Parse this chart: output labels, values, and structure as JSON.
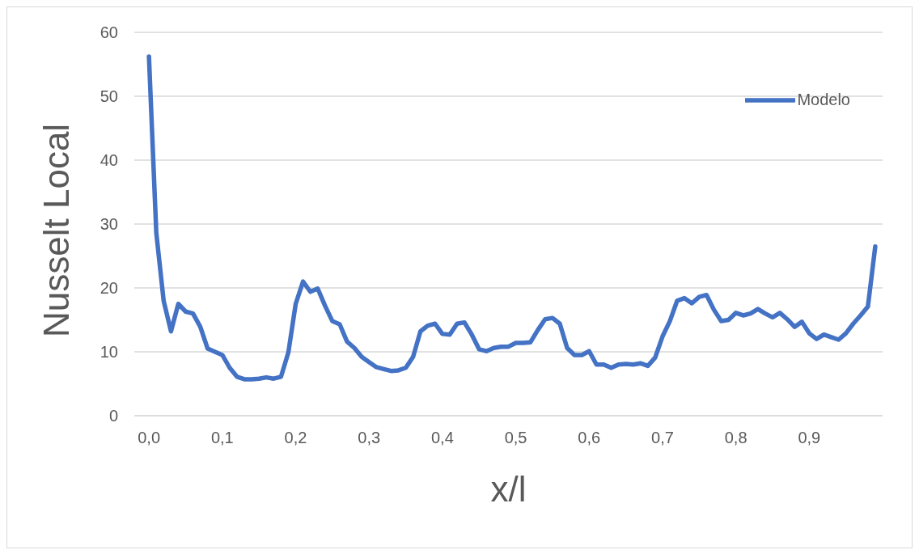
{
  "chart_data": {
    "type": "line",
    "xlabel": "x/l",
    "ylabel": "Nusselt Local",
    "x": [
      0,
      0.01,
      0.02,
      0.03,
      0.04,
      0.05,
      0.06,
      0.07,
      0.08,
      0.09,
      0.1,
      0.11,
      0.12,
      0.13,
      0.14,
      0.15,
      0.16,
      0.17,
      0.18,
      0.19,
      0.2,
      0.21,
      0.22,
      0.23,
      0.24,
      0.25,
      0.26,
      0.27,
      0.28,
      0.29,
      0.3,
      0.31,
      0.32,
      0.33,
      0.34,
      0.35,
      0.36,
      0.37,
      0.38,
      0.39,
      0.4,
      0.41,
      0.42,
      0.43,
      0.44,
      0.45,
      0.46,
      0.47,
      0.48,
      0.49,
      0.5,
      0.51,
      0.52,
      0.53,
      0.54,
      0.55,
      0.56,
      0.57,
      0.58,
      0.59,
      0.6,
      0.61,
      0.62,
      0.63,
      0.64,
      0.65,
      0.66,
      0.67,
      0.68,
      0.69,
      0.7,
      0.71,
      0.72,
      0.73,
      0.74,
      0.75,
      0.76,
      0.77,
      0.78,
      0.79,
      0.8,
      0.81,
      0.82,
      0.83,
      0.84,
      0.85,
      0.86,
      0.87,
      0.88,
      0.89,
      0.9,
      0.91,
      0.92,
      0.93,
      0.94,
      0.95,
      0.96,
      0.97,
      0.98,
      0.99
    ],
    "series": [
      {
        "name": "Modelo",
        "color": "#4472c4",
        "values": [
          56.2,
          28.6,
          18,
          13.2,
          17.5,
          16.3,
          16,
          13.9,
          10.5,
          10,
          9.5,
          7.5,
          6.1,
          5.7,
          5.7,
          5.8,
          6,
          5.8,
          6.1,
          9.9,
          17.5,
          21,
          19.4,
          19.9,
          17.2,
          14.8,
          14.3,
          11.6,
          10.6,
          9.2,
          8.4,
          7.6,
          7.3,
          7,
          7.1,
          7.5,
          9.2,
          13.2,
          14.1,
          14.4,
          12.8,
          12.7,
          14.4,
          14.6,
          12.7,
          10.4,
          10.1,
          10.6,
          10.8,
          10.8,
          11.4,
          11.4,
          11.5,
          13.4,
          15.1,
          15.3,
          14.4,
          10.6,
          9.5,
          9.5,
          10.1,
          8,
          8,
          7.5,
          8,
          8.1,
          8,
          8.2,
          7.8,
          9.1,
          12.4,
          14.8,
          18,
          18.4,
          17.6,
          18.6,
          18.9,
          16.6,
          14.8,
          15,
          16.1,
          15.7,
          16,
          16.7,
          16,
          15.4,
          16.1,
          15.1,
          13.9,
          14.7,
          12.9,
          12,
          12.7,
          12.3,
          11.9,
          12.9,
          14.4,
          15.7,
          17.1,
          26.5
        ]
      }
    ],
    "xlim": [
      -0.02,
      1.0
    ],
    "xticks": [
      {
        "value": 0,
        "label": "0,0"
      },
      {
        "value": 0.1,
        "label": "0,1"
      },
      {
        "value": 0.2,
        "label": "0,2"
      },
      {
        "value": 0.3,
        "label": "0,3"
      },
      {
        "value": 0.4,
        "label": "0,4"
      },
      {
        "value": 0.5,
        "label": "0,5"
      },
      {
        "value": 0.6,
        "label": "0,6"
      },
      {
        "value": 0.7,
        "label": "0,7"
      },
      {
        "value": 0.8,
        "label": "0,8"
      },
      {
        "value": 0.9,
        "label": "0,9"
      }
    ],
    "ylim": [
      0,
      60
    ],
    "yticks": [
      0,
      10,
      20,
      30,
      40,
      50,
      60
    ],
    "grid": "y",
    "legend": "top right",
    "marker": "none",
    "line_style": "solid"
  }
}
